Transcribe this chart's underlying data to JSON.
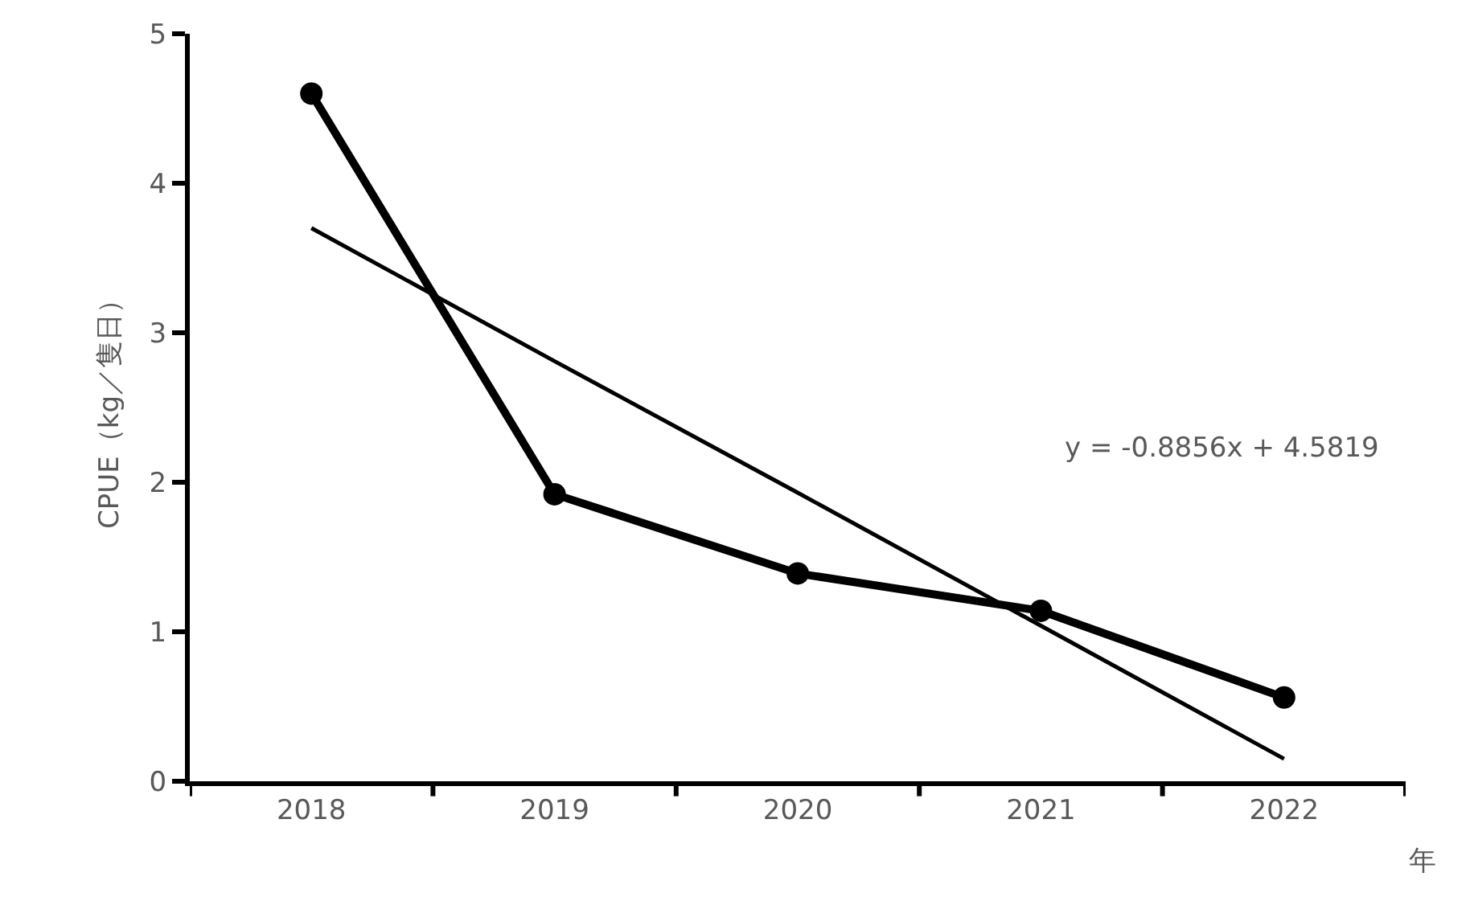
{
  "chart_data": {
    "type": "line",
    "xlabel": "年",
    "ylabel": "CPUE（kg／隻日）",
    "categories": [
      "2018",
      "2019",
      "2020",
      "2021",
      "2022"
    ],
    "series": [
      {
        "color": "#000000",
        "values": [
          4.6,
          1.92,
          1.39,
          1.14,
          0.56
        ],
        "marker": "circle",
        "line_style": "solid"
      },
      {
        "type": "line",
        "color": "#000000",
        "values": [
          3.7,
          2.81,
          1.93,
          1.04,
          0.15
        ],
        "marker": "none",
        "line_style": "solid"
      }
    ],
    "annotations": [
      "y = -0.8856x + 4.5819"
    ],
    "ylim": [
      0,
      5
    ],
    "yticks": [
      0,
      1,
      2,
      3,
      4,
      5
    ]
  }
}
